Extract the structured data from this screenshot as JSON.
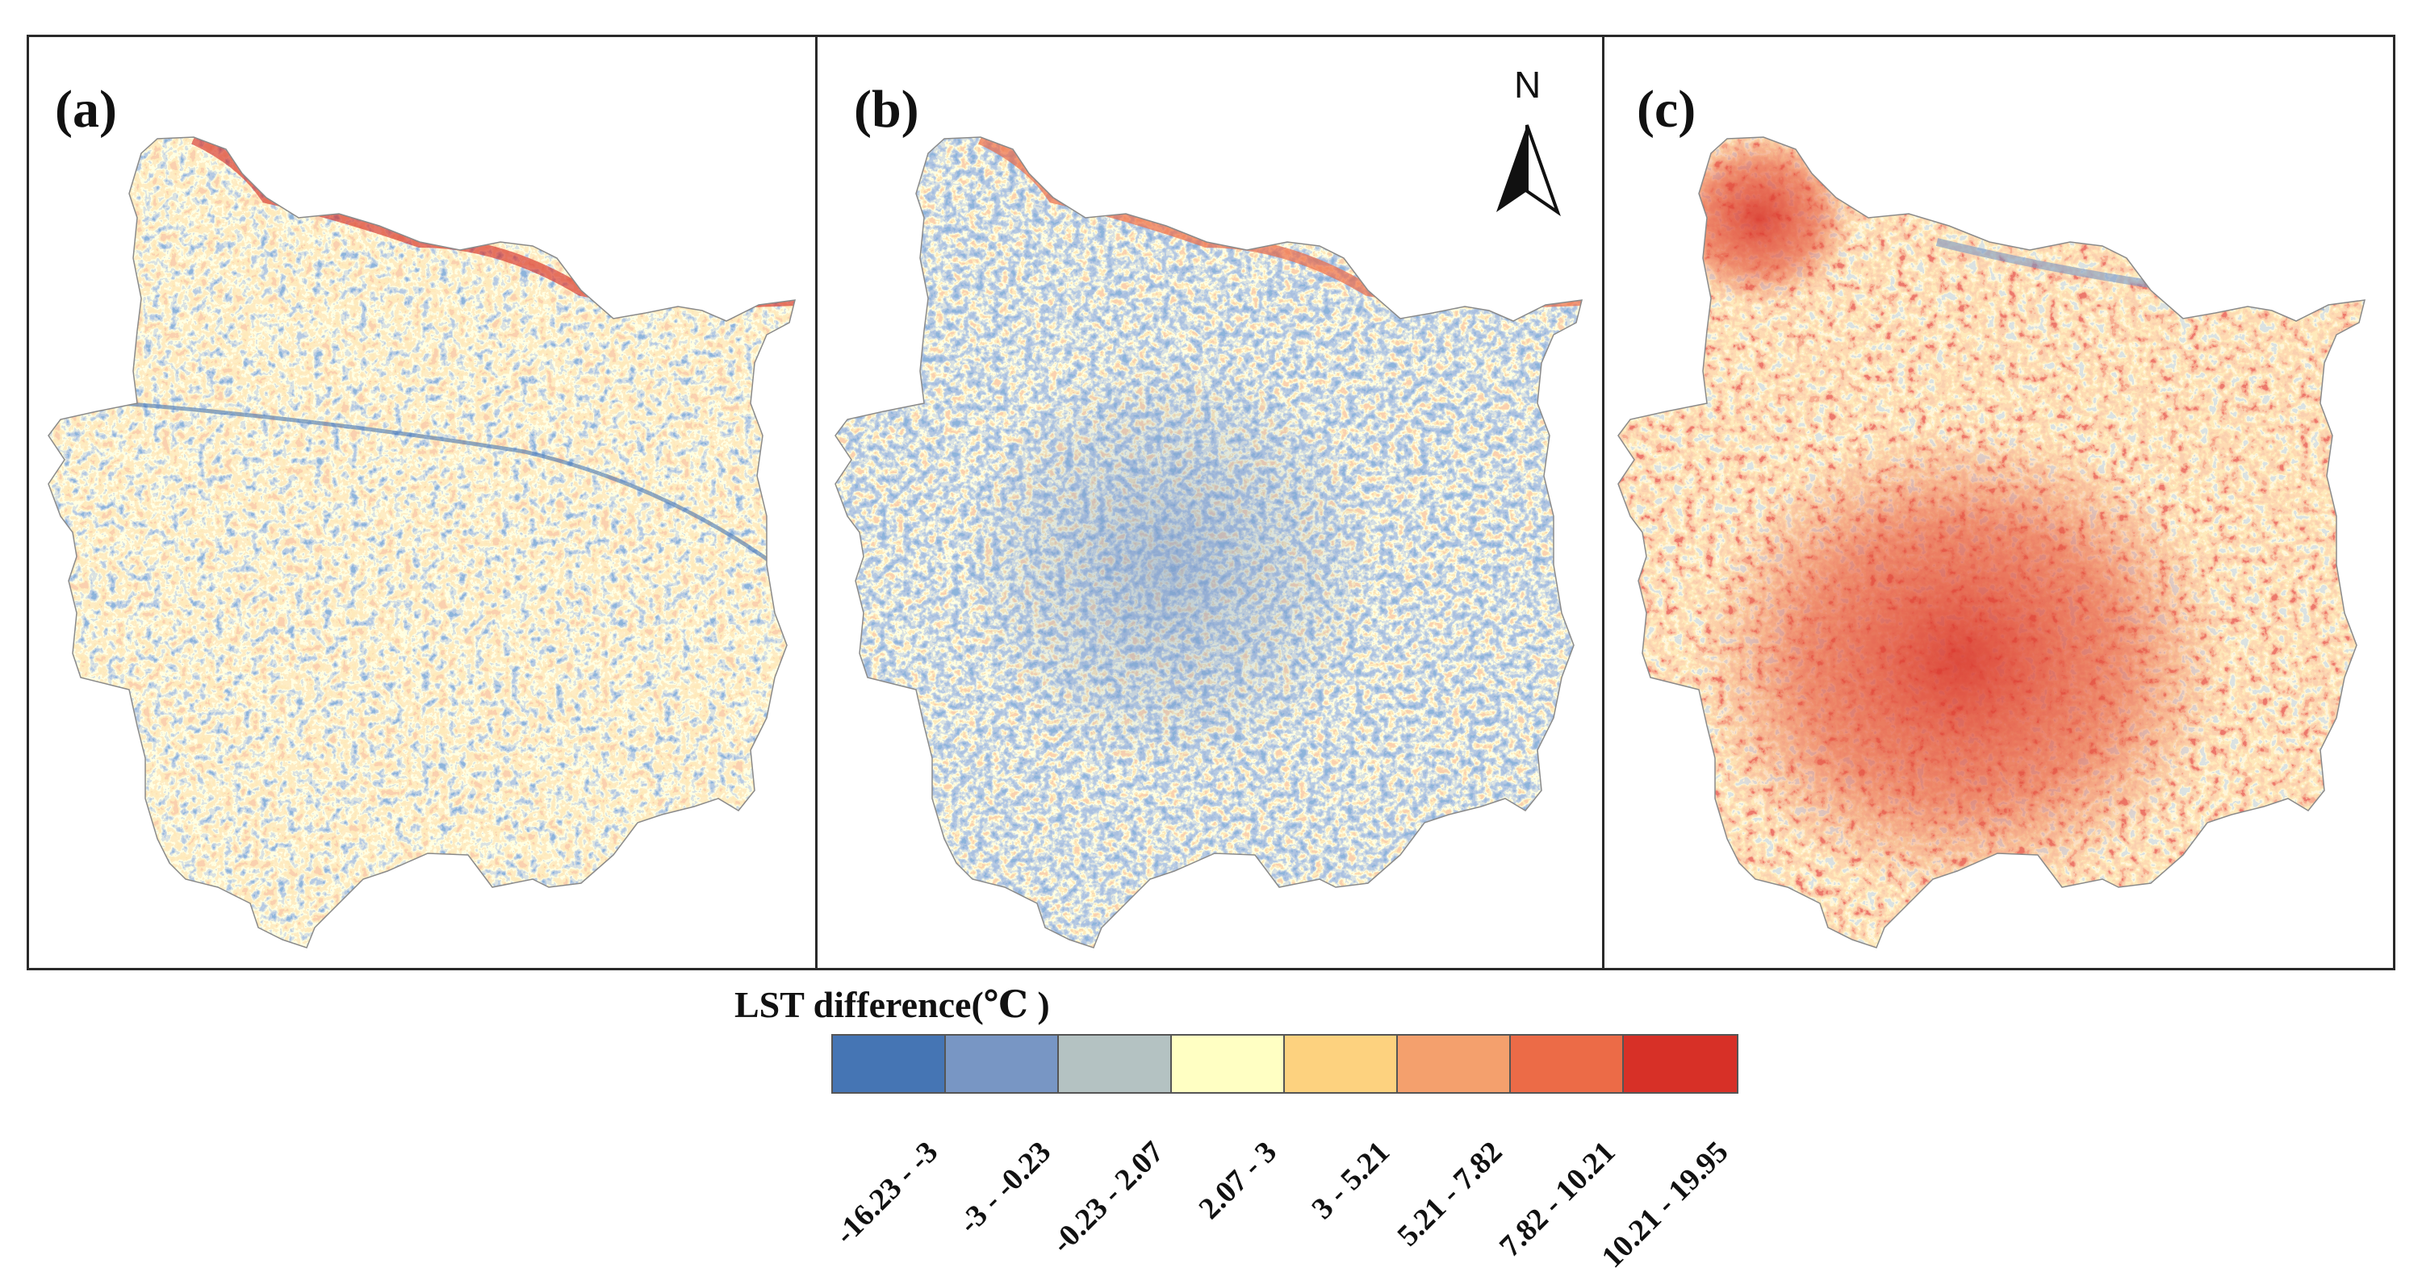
{
  "figure": {
    "panels": [
      {
        "label": "(a)"
      },
      {
        "label": "(b)"
      },
      {
        "label": "(c)"
      }
    ],
    "north_arrow": {
      "label": "N",
      "icon": "north-arrow-icon"
    }
  },
  "legend": {
    "title": "LST difference(℃ )",
    "classes": [
      {
        "range": "-16.23 - -3",
        "color": "#4575b4"
      },
      {
        "range": "-3 - -0.23",
        "color": "#7896c4"
      },
      {
        "range": "-0.23 - 2.07",
        "color": "#b4c2c2"
      },
      {
        "range": "2.07 - 3",
        "color": "#ffffc3"
      },
      {
        "range": "3 - 5.21",
        "color": "#fdd27f"
      },
      {
        "range": "5.21 - 7.82",
        "color": "#f4a06d"
      },
      {
        "range": "7.82 - 10.21",
        "color": "#ec6b47"
      },
      {
        "range": "10.21 - 19.95",
        "color": "#d73027"
      }
    ]
  }
}
